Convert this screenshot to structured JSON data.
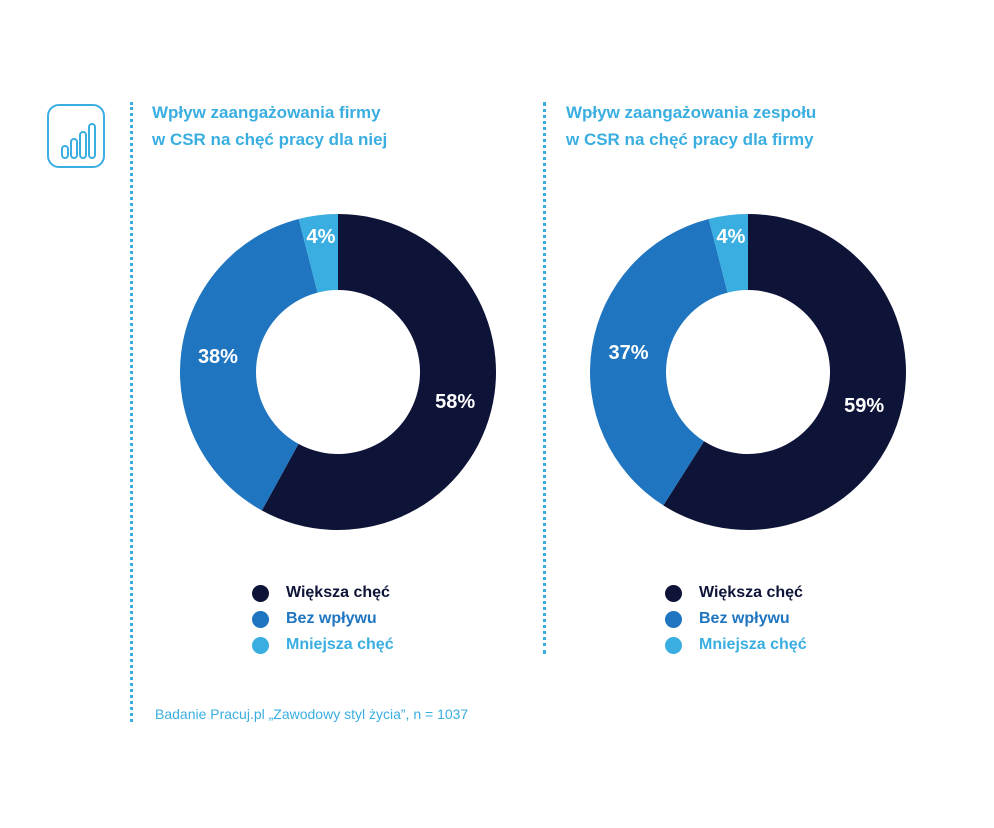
{
  "source": "Badanie Pracuj.pl „Zawodowy styl życia”, n = 1037",
  "icon": "bar-chart-icon",
  "colors": {
    "accent": "#3aaee0",
    "dark": "#0e1338",
    "mid": "#1f75c0",
    "light": "#3aaee0"
  },
  "chart_data": [
    {
      "type": "pie",
      "donut": true,
      "title_lines": [
        "Wpływ zaangażowania firmy",
        "w CSR na chęć pracy dla niej"
      ],
      "slices": [
        {
          "label": "Większa chęć",
          "value": 58,
          "display": "58%",
          "color": "#0e1338"
        },
        {
          "label": "Bez wpływu",
          "value": 38,
          "display": "38%",
          "color": "#1f75c0"
        },
        {
          "label": "Mniejsza chęć",
          "value": 4,
          "display": "4%",
          "color": "#3aaee0"
        }
      ],
      "legend": [
        {
          "label": "Większa chęć",
          "color": "#0e1338"
        },
        {
          "label": "Bez wpływu",
          "color": "#1f75c0"
        },
        {
          "label": "Mniejsza chęć",
          "color": "#3aaee0"
        }
      ]
    },
    {
      "type": "pie",
      "donut": true,
      "title_lines": [
        "Wpływ zaangażowania zespołu",
        "w CSR na chęć pracy dla firmy"
      ],
      "slices": [
        {
          "label": "Większa chęć",
          "value": 59,
          "display": "59%",
          "color": "#0e1338"
        },
        {
          "label": "Bez wpływu",
          "value": 37,
          "display": "37%",
          "color": "#1f75c0"
        },
        {
          "label": "Mniejsza chęć",
          "value": 4,
          "display": "4%",
          "color": "#3aaee0"
        }
      ],
      "legend": [
        {
          "label": "Większa chęć",
          "color": "#0e1338"
        },
        {
          "label": "Bez wpływu",
          "color": "#1f75c0"
        },
        {
          "label": "Mniejsza chęć",
          "color": "#3aaee0"
        }
      ]
    }
  ]
}
